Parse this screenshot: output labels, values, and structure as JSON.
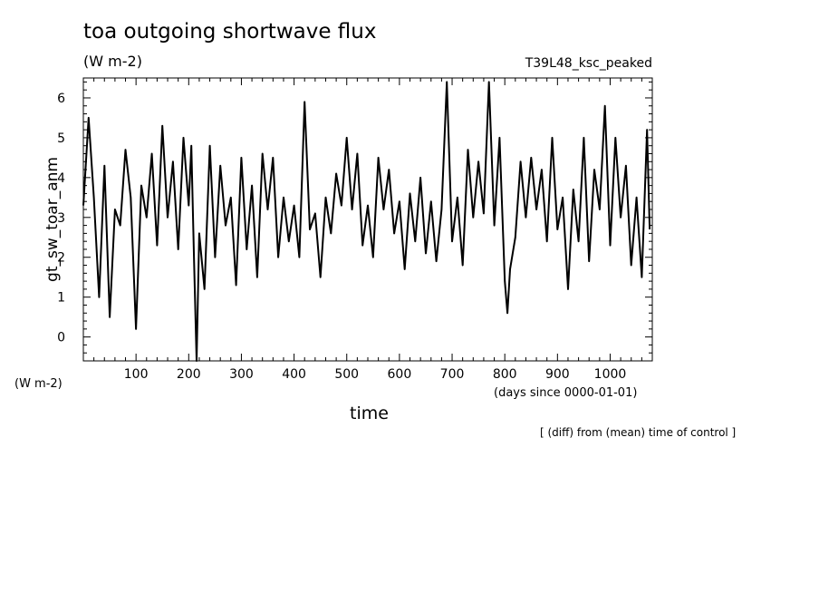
{
  "chart_data": {
    "type": "line",
    "title": "toa outgoing shortwave flux",
    "units": "(W m-2)",
    "run_label": "T39L48_ksc_peaked",
    "ylabel": "gt_sw_toar_anm",
    "yunit": "(W m-2)",
    "xlabel": "time",
    "xunit": "(days since 0000-01-01)",
    "note": "[ (diff) from (mean) time of control ]",
    "xlim": [
      0,
      1080
    ],
    "ylim": [
      -0.6,
      6.5
    ],
    "xticks": [
      100,
      200,
      300,
      400,
      500,
      600,
      700,
      800,
      900,
      1000
    ],
    "yticks": [
      0,
      1,
      2,
      3,
      4,
      5,
      6
    ],
    "grid": false,
    "line_color": "#000000",
    "series": [
      {
        "x": [
          0,
          10,
          20,
          30,
          40,
          50,
          60,
          70,
          80,
          90,
          100,
          110,
          120,
          130,
          140,
          150,
          160,
          170,
          180,
          190,
          200,
          205,
          210,
          215,
          220,
          230,
          240,
          250,
          260,
          270,
          280,
          290,
          300,
          310,
          320,
          330,
          340,
          350,
          360,
          370,
          380,
          390,
          400,
          410,
          420,
          430,
          440,
          450,
          460,
          470,
          480,
          490,
          500,
          510,
          520,
          530,
          540,
          550,
          560,
          570,
          580,
          590,
          600,
          610,
          620,
          630,
          640,
          650,
          660,
          670,
          680,
          690,
          700,
          710,
          720,
          730,
          740,
          750,
          760,
          770,
          780,
          790,
          800,
          805,
          810,
          820,
          830,
          840,
          850,
          860,
          870,
          880,
          890,
          900,
          910,
          920,
          930,
          940,
          950,
          960,
          970,
          980,
          990,
          1000,
          1010,
          1020,
          1030,
          1040,
          1050,
          1060,
          1070,
          1075
        ],
        "y": [
          3.3,
          5.5,
          3.5,
          1.0,
          4.3,
          0.5,
          3.2,
          2.8,
          4.7,
          3.5,
          0.2,
          3.8,
          3.0,
          4.6,
          2.3,
          5.3,
          3.0,
          4.4,
          2.2,
          5.0,
          3.3,
          4.8,
          2.0,
          -0.6,
          2.6,
          1.2,
          4.8,
          2.0,
          4.3,
          2.8,
          3.5,
          1.3,
          4.5,
          2.2,
          3.8,
          1.5,
          4.6,
          3.2,
          4.5,
          2.0,
          3.5,
          2.4,
          3.3,
          2.0,
          5.9,
          2.7,
          3.1,
          1.5,
          3.5,
          2.6,
          4.1,
          3.3,
          5.0,
          3.2,
          4.6,
          2.3,
          3.3,
          2.0,
          4.5,
          3.2,
          4.2,
          2.6,
          3.4,
          1.7,
          3.6,
          2.4,
          4.0,
          2.1,
          3.4,
          1.9,
          3.2,
          6.4,
          2.4,
          3.5,
          1.8,
          4.7,
          3.0,
          4.4,
          3.1,
          6.4,
          2.8,
          5.0,
          1.4,
          0.6,
          1.7,
          2.5,
          4.4,
          3.0,
          4.5,
          3.2,
          4.2,
          2.4,
          5.0,
          2.7,
          3.5,
          1.2,
          3.7,
          2.4,
          5.0,
          1.9,
          4.2,
          3.2,
          5.8,
          2.3,
          5.0,
          3.0,
          4.3,
          1.8,
          3.5,
          1.5,
          5.2,
          2.7
        ]
      }
    ]
  }
}
